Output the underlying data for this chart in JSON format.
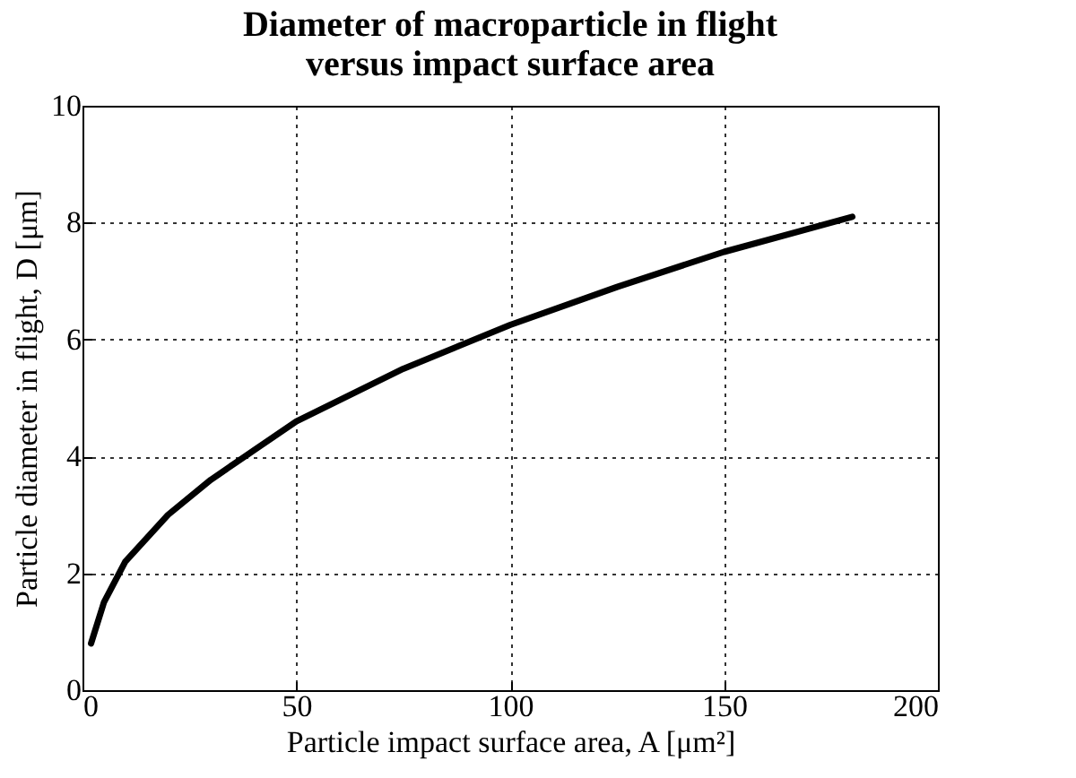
{
  "chart_data": {
    "type": "line",
    "title": "Diameter of macroparticle in flight\nversus impact surface area",
    "xlabel": "Particle impact surface area, A [μm²]",
    "ylabel": "Particle diameter in flight, D [μm]",
    "x": [
      2,
      5,
      10,
      20,
      30,
      40,
      50,
      75,
      100,
      125,
      150,
      180
    ],
    "series": [
      {
        "color": "#000000",
        "values": [
          0.8,
          1.5,
          2.2,
          3.0,
          3.6,
          4.1,
          4.6,
          5.5,
          6.25,
          6.9,
          7.5,
          8.1
        ]
      }
    ],
    "xlim": [
      0,
      200
    ],
    "xticks": [
      0,
      50,
      100,
      150,
      200
    ],
    "ylim": [
      0,
      10
    ],
    "yticks": [
      0,
      2,
      4,
      6,
      8,
      10
    ],
    "grid": true,
    "marker": "none",
    "line_style": "solid"
  }
}
